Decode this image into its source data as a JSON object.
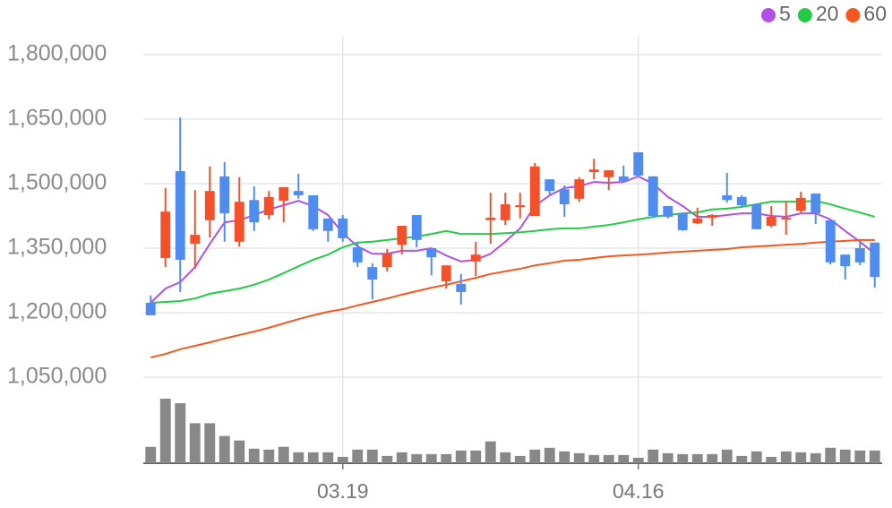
{
  "chart_data": {
    "type": "candlestick",
    "legend_position": "top-right",
    "grid": true,
    "ylim": [
      1000000,
      1800000
    ],
    "yticks": [
      {
        "value": 1800000,
        "label": "1,800,000"
      },
      {
        "value": 1650000,
        "label": "1,650,000"
      },
      {
        "value": 1500000,
        "label": "1,500,000"
      },
      {
        "value": 1350000,
        "label": "1,350,000"
      },
      {
        "value": 1200000,
        "label": "1,200,000"
      },
      {
        "value": 1050000,
        "label": "1,050,000"
      }
    ],
    "categories": [
      null,
      null,
      null,
      null,
      null,
      null,
      null,
      null,
      null,
      null,
      null,
      null,
      null,
      "03.19",
      null,
      null,
      null,
      null,
      null,
      null,
      null,
      null,
      null,
      null,
      null,
      null,
      null,
      null,
      null,
      null,
      null,
      null,
      null,
      "04.16",
      null,
      null,
      null,
      null,
      null,
      null,
      null,
      null,
      null,
      null,
      null,
      null,
      null,
      null,
      null,
      null
    ],
    "candles": {
      "up_color": "#f4502a",
      "down_color": "#4f8cf0",
      "open": [
        1223000,
        1327000,
        1529000,
        1360000,
        1415000,
        1517000,
        1365000,
        1462000,
        1427000,
        1460000,
        1483000,
        1473000,
        1419000,
        1419000,
        1352000,
        1306000,
        1306000,
        1358000,
        1427000,
        1350000,
        1273000,
        1267000,
        1319000,
        1415000,
        1415000,
        1446000,
        1425000,
        1510000,
        1487000,
        1465000,
        1527000,
        1515000,
        1517000,
        1573000,
        1517000,
        1448000,
        1431000,
        1408000,
        1421000,
        1473000,
        1469000,
        1452000,
        1402000,
        1417000,
        1437000,
        1477000,
        1415000,
        1335000,
        1350000,
        1363000
      ],
      "high": [
        1240000,
        1490000,
        1654000,
        1485000,
        1540000,
        1550000,
        1515000,
        1494000,
        1483000,
        1492000,
        1523000,
        1473000,
        1419000,
        1427000,
        1365000,
        1315000,
        1348000,
        1402000,
        1427000,
        1350000,
        1310000,
        1290000,
        1365000,
        1479000,
        1479000,
        1479000,
        1548000,
        1510000,
        1496000,
        1515000,
        1558000,
        1531000,
        1542000,
        1573000,
        1517000,
        1448000,
        1431000,
        1444000,
        1429000,
        1525000,
        1473000,
        1452000,
        1448000,
        1460000,
        1481000,
        1477000,
        1415000,
        1335000,
        1365000,
        1363000
      ],
      "low": [
        1194000,
        1306000,
        1248000,
        1302000,
        1375000,
        1365000,
        1354000,
        1390000,
        1417000,
        1410000,
        1465000,
        1390000,
        1365000,
        1365000,
        1306000,
        1231000,
        1296000,
        1335000,
        1352000,
        1287000,
        1256000,
        1219000,
        1285000,
        1360000,
        1404000,
        1419000,
        1425000,
        1475000,
        1423000,
        1458000,
        1510000,
        1485000,
        1504000,
        1515000,
        1423000,
        1419000,
        1390000,
        1406000,
        1402000,
        1456000,
        1444000,
        1394000,
        1398000,
        1381000,
        1433000,
        1406000,
        1312000,
        1277000,
        1310000,
        1258000
      ],
      "close": [
        1194000,
        1435000,
        1323000,
        1381000,
        1483000,
        1431000,
        1458000,
        1410000,
        1469000,
        1492000,
        1473000,
        1394000,
        1390000,
        1373000,
        1317000,
        1277000,
        1338000,
        1402000,
        1369000,
        1329000,
        1310000,
        1248000,
        1335000,
        1421000,
        1452000,
        1450000,
        1540000,
        1483000,
        1452000,
        1510000,
        1533000,
        1531000,
        1506000,
        1519000,
        1425000,
        1423000,
        1392000,
        1419000,
        1427000,
        1462000,
        1450000,
        1394000,
        1423000,
        1421000,
        1467000,
        1431000,
        1317000,
        1308000,
        1317000,
        1283000
      ]
    },
    "series": [
      {
        "name": "5",
        "color": "#b24fe6",
        "values": [
          1223000,
          1256000,
          1271000,
          1306000,
          1360000,
          1410000,
          1415000,
          1427000,
          1440000,
          1450000,
          1460000,
          1448000,
          1427000,
          1385000,
          1354000,
          1337000,
          1337000,
          1344000,
          1344000,
          1350000,
          1333000,
          1319000,
          1323000,
          1337000,
          1365000,
          1396000,
          1448000,
          1473000,
          1490000,
          1494000,
          1504000,
          1502000,
          1504000,
          1517000,
          1500000,
          1469000,
          1448000,
          1423000,
          1423000,
          1427000,
          1431000,
          1431000,
          1425000,
          1423000,
          1431000,
          1431000,
          1417000,
          1390000,
          1365000,
          1337000
        ]
      },
      {
        "name": "20",
        "color": "#22cc44",
        "values": [
          1223000,
          1225000,
          1227000,
          1233000,
          1244000,
          1250000,
          1256000,
          1265000,
          1277000,
          1292000,
          1308000,
          1323000,
          1335000,
          1352000,
          1363000,
          1365000,
          1369000,
          1373000,
          1377000,
          1383000,
          1390000,
          1383000,
          1383000,
          1383000,
          1385000,
          1387000,
          1390000,
          1394000,
          1396000,
          1396000,
          1400000,
          1404000,
          1410000,
          1417000,
          1423000,
          1427000,
          1431000,
          1433000,
          1440000,
          1442000,
          1446000,
          1452000,
          1458000,
          1458000,
          1458000,
          1460000,
          1452000,
          1442000,
          1433000,
          1423000
        ]
      },
      {
        "name": "60",
        "color": "#f4581f",
        "values": [
          1096000,
          1104000,
          1115000,
          1123000,
          1131000,
          1140000,
          1148000,
          1156000,
          1165000,
          1175000,
          1185000,
          1194000,
          1202000,
          1208000,
          1217000,
          1225000,
          1233000,
          1242000,
          1250000,
          1258000,
          1265000,
          1273000,
          1281000,
          1290000,
          1296000,
          1302000,
          1310000,
          1315000,
          1321000,
          1323000,
          1327000,
          1331000,
          1333000,
          1335000,
          1337000,
          1340000,
          1342000,
          1344000,
          1346000,
          1348000,
          1352000,
          1354000,
          1356000,
          1358000,
          1360000,
          1363000,
          1365000,
          1367000,
          1369000,
          1369000
        ]
      }
    ],
    "volume": {
      "color": "#888888",
      "values": [
        18,
        71,
        66,
        44,
        44,
        30,
        25,
        16,
        15,
        18,
        12,
        12,
        12,
        7,
        15,
        15,
        8,
        12,
        10,
        10,
        10,
        14,
        14,
        24,
        12,
        8,
        15,
        17,
        13,
        11,
        9,
        9,
        9,
        6,
        15,
        11,
        10,
        10,
        10,
        15,
        8,
        13,
        7,
        13,
        12,
        11,
        17,
        15,
        14,
        14
      ]
    }
  }
}
